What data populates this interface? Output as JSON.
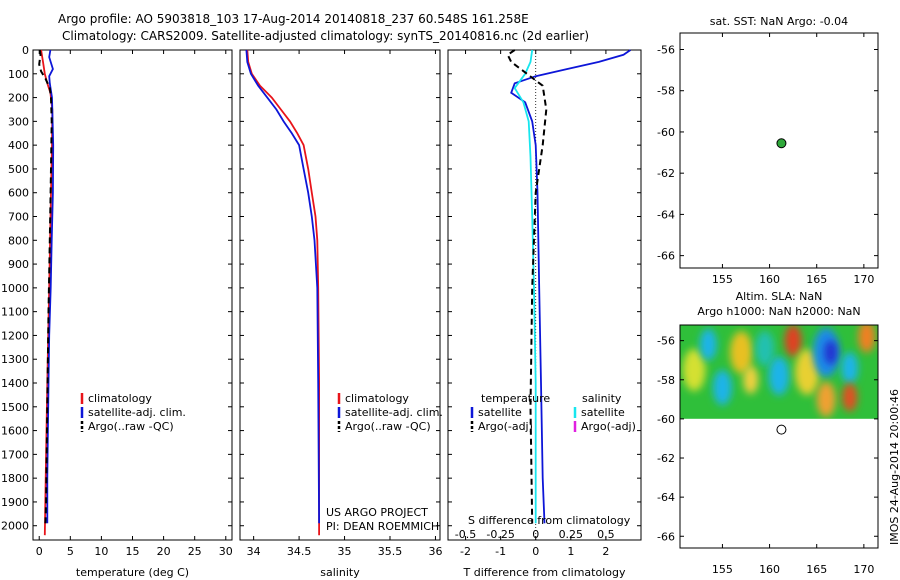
{
  "header": {
    "line1": "Argo profile: AO 5903818_103 17-Aug-2014 20140818_237 60.548S 161.258E",
    "line2": "Climatology: CARS2009. Satellite-adjusted climatology: synTS_20140816.nc (2d earlier)"
  },
  "side_label": "IMOS 24-Aug-2014 20:00:46",
  "colors": {
    "climatology": "#e8141a",
    "satellite": "#0d16d8",
    "argo": "#000000",
    "salinity_satellite": "#17e6ee",
    "salinity_argo": "#e020e0",
    "sst_marker": "#2fa83a"
  },
  "chart_data": [
    {
      "id": "temperature",
      "type": "line",
      "xlabel": "temperature (deg C)",
      "xlim": [
        -1,
        31
      ],
      "ylim": [
        2060,
        0
      ],
      "x_ticks": [
        0,
        5,
        10,
        15,
        20,
        25,
        30
      ],
      "y_ticks": [
        0,
        100,
        200,
        300,
        400,
        500,
        600,
        700,
        800,
        900,
        1000,
        1100,
        1200,
        1300,
        1400,
        1500,
        1600,
        1700,
        1800,
        1900,
        2000
      ],
      "legend": [
        "climatology",
        "satellite-adj. clim.",
        "Argo(..raw -QC)"
      ],
      "series": [
        {
          "name": "climatology",
          "color_key": "climatology",
          "dashed": false,
          "x": [
            0.3,
            0.6,
            0.9,
            1.3,
            1.8,
            2.1,
            2.05,
            1.9,
            1.75,
            1.6,
            1.45,
            1.3,
            1.05,
            0.9
          ],
          "y": [
            0,
            50,
            100,
            140,
            180,
            250,
            400,
            600,
            800,
            1000,
            1200,
            1400,
            1800,
            2040
          ]
        },
        {
          "name": "satellite-adj. clim.",
          "color_key": "satellite",
          "dashed": false,
          "x": [
            1.8,
            1.6,
            2.2,
            1.6,
            1.7,
            2.05,
            2.25,
            2.2,
            2.0,
            1.85,
            1.6,
            1.5,
            1.4,
            1.3,
            1.3
          ],
          "y": [
            0,
            30,
            80,
            110,
            140,
            200,
            400,
            600,
            800,
            1000,
            1200,
            1400,
            1600,
            1800,
            1990
          ]
        },
        {
          "name": "Argo(..raw -QC)",
          "color_key": "argo",
          "dashed": true,
          "x": [
            0.1,
            0.2,
            0.0,
            0.3,
            1.0,
            1.7,
            1.9,
            2.0,
            1.9,
            1.7,
            1.5,
            1.35,
            1.2,
            1.1,
            1.0
          ],
          "y": [
            0,
            20,
            60,
            90,
            120,
            160,
            200,
            300,
            500,
            800,
            1100,
            1400,
            1700,
            1900,
            1990
          ]
        }
      ]
    },
    {
      "id": "salinity",
      "type": "line",
      "xlabel": "salinity",
      "xlim": [
        33.85,
        36.05
      ],
      "ylim": [
        2060,
        0
      ],
      "x_ticks": [
        34,
        34.5,
        35,
        35.5,
        36
      ],
      "legend": [
        "climatology",
        "satellite-adj. clim.",
        "Argo(..raw -QC)"
      ],
      "annotation": [
        "US ARGO PROJECT",
        "PI: DEAN ROEMMICH"
      ],
      "series": [
        {
          "name": "climatology",
          "color_key": "climatology",
          "dashed": false,
          "x": [
            33.93,
            33.94,
            33.98,
            34.07,
            34.2,
            34.3,
            34.4,
            34.48,
            34.55,
            34.6,
            34.64,
            34.68,
            34.7,
            34.71,
            34.72,
            34.72
          ],
          "y": [
            0,
            50,
            100,
            150,
            200,
            250,
            300,
            350,
            400,
            500,
            600,
            700,
            800,
            1000,
            1400,
            2040
          ]
        },
        {
          "name": "satellite-adj. clim.",
          "color_key": "satellite",
          "dashed": false,
          "x": [
            33.92,
            33.93,
            33.97,
            34.05,
            34.15,
            34.25,
            34.33,
            34.42,
            34.5,
            34.55,
            34.6,
            34.64,
            34.67,
            34.7,
            34.71,
            34.72
          ],
          "y": [
            0,
            50,
            100,
            150,
            200,
            250,
            300,
            350,
            400,
            500,
            600,
            700,
            800,
            1000,
            1400,
            1990
          ]
        }
      ]
    },
    {
      "id": "difference",
      "type": "line",
      "xlabel": "T difference from climatology",
      "xlim": [
        -2.5,
        3.0
      ],
      "ylim": [
        2060,
        0
      ],
      "x_ticks": [
        -2,
        -1,
        0,
        1,
        2
      ],
      "s_axis_label": "S difference from climatology",
      "s_ticks": [
        -0.5,
        -0.25,
        0,
        0.25,
        0.5
      ],
      "s_tick_labels": [
        "-0.5",
        "-0.25",
        "0",
        "0.25",
        "0.5"
      ],
      "legend_temperature": {
        "title": "temperature",
        "items": [
          "satellite",
          "Argo(-adj)"
        ]
      },
      "legend_salinity": {
        "title": "salinity",
        "items": [
          "satellite",
          "Argo(-adj)"
        ]
      },
      "series": [
        {
          "name": "T satellite",
          "color_key": "satellite",
          "dashed": false,
          "x": [
            2.7,
            2.5,
            1.8,
            0.9,
            0.0,
            -0.6,
            -0.7,
            -0.3,
            -0.1,
            0.0,
            0.05,
            0.1,
            0.15,
            0.2,
            0.25
          ],
          "y": [
            0,
            20,
            50,
            80,
            110,
            140,
            180,
            220,
            300,
            400,
            600,
            1000,
            1400,
            1800,
            1990
          ]
        },
        {
          "name": "S satellite",
          "color_key": "salinity_satellite",
          "dashed": false,
          "x": [
            -0.1,
            -0.15,
            -0.3,
            -0.6,
            -0.35,
            -0.2,
            -0.15,
            -0.1,
            -0.05,
            0.0,
            0.0
          ],
          "y": [
            0,
            50,
            100,
            160,
            220,
            300,
            450,
            700,
            1000,
            1400,
            1990
          ]
        },
        {
          "name": "T Argo(-adj)",
          "color_key": "argo",
          "dashed": true,
          "x": [
            -0.6,
            -0.8,
            -0.7,
            0.2,
            0.3,
            0.2,
            0.0,
            -0.1,
            -0.15,
            -0.1
          ],
          "y": [
            0,
            20,
            50,
            150,
            250,
            400,
            600,
            1000,
            1500,
            1990
          ]
        }
      ]
    },
    {
      "id": "sst_map",
      "type": "scatter",
      "title": "sat. SST: NaN Argo: -0.04",
      "xlim": [
        150.5,
        171.5
      ],
      "ylim": [
        -66.6,
        -55.2
      ],
      "x_ticks": [
        155,
        160,
        165,
        170
      ],
      "y_ticks": [
        -56,
        -58,
        -60,
        -62,
        -64,
        -66
      ],
      "points": [
        {
          "lon": 161.258,
          "lat": -60.548,
          "color_key": "sst_marker"
        }
      ]
    },
    {
      "id": "sla_map",
      "type": "heatmap",
      "title_lines": [
        "Altim. SLA: NaN",
        "Argo h1000: NaN h2000: NaN"
      ],
      "xlim": [
        150.5,
        171.5
      ],
      "ylim": [
        -66.6,
        -55.2
      ],
      "x_ticks": [
        155,
        160,
        165,
        170
      ],
      "y_ticks": [
        -56,
        -58,
        -60,
        -62,
        -64,
        -66
      ],
      "field_lat_range": [
        -60.0,
        -55.2
      ],
      "field_background": "#2fbf3a",
      "lower_area_color": "#ffffff",
      "blobs": [
        {
          "lon": 152.0,
          "lat": -57.5,
          "r": 1.2,
          "color": "#d4e030"
        },
        {
          "lon": 153.5,
          "lat": -56.2,
          "r": 0.9,
          "color": "#1ab4e8"
        },
        {
          "lon": 155.0,
          "lat": -58.4,
          "r": 1.0,
          "color": "#1ab4e8"
        },
        {
          "lon": 157.0,
          "lat": -56.6,
          "r": 1.2,
          "color": "#e8c020"
        },
        {
          "lon": 158.0,
          "lat": -58.0,
          "r": 0.8,
          "color": "#f0d040"
        },
        {
          "lon": 159.5,
          "lat": -56.4,
          "r": 1.0,
          "color": "#20c0b0"
        },
        {
          "lon": 161.0,
          "lat": -57.8,
          "r": 1.1,
          "color": "#1ab4e8"
        },
        {
          "lon": 162.5,
          "lat": -56.0,
          "r": 0.9,
          "color": "#e04020"
        },
        {
          "lon": 164.0,
          "lat": -57.6,
          "r": 1.3,
          "color": "#e8d030"
        },
        {
          "lon": 166.0,
          "lat": -56.6,
          "r": 1.4,
          "color": "#1a8ce8"
        },
        {
          "lon": 166.5,
          "lat": -56.6,
          "r": 0.7,
          "color": "#2030d0"
        },
        {
          "lon": 168.5,
          "lat": -57.4,
          "r": 0.9,
          "color": "#1ab4e8"
        },
        {
          "lon": 166.0,
          "lat": -59.0,
          "r": 1.0,
          "color": "#f0a030"
        },
        {
          "lon": 168.5,
          "lat": -58.9,
          "r": 0.8,
          "color": "#e05020"
        },
        {
          "lon": 170.3,
          "lat": -55.8,
          "r": 0.9,
          "color": "#f08020"
        }
      ],
      "points": [
        {
          "lon": 161.258,
          "lat": -60.548,
          "fill": "#ffffff"
        }
      ]
    }
  ]
}
